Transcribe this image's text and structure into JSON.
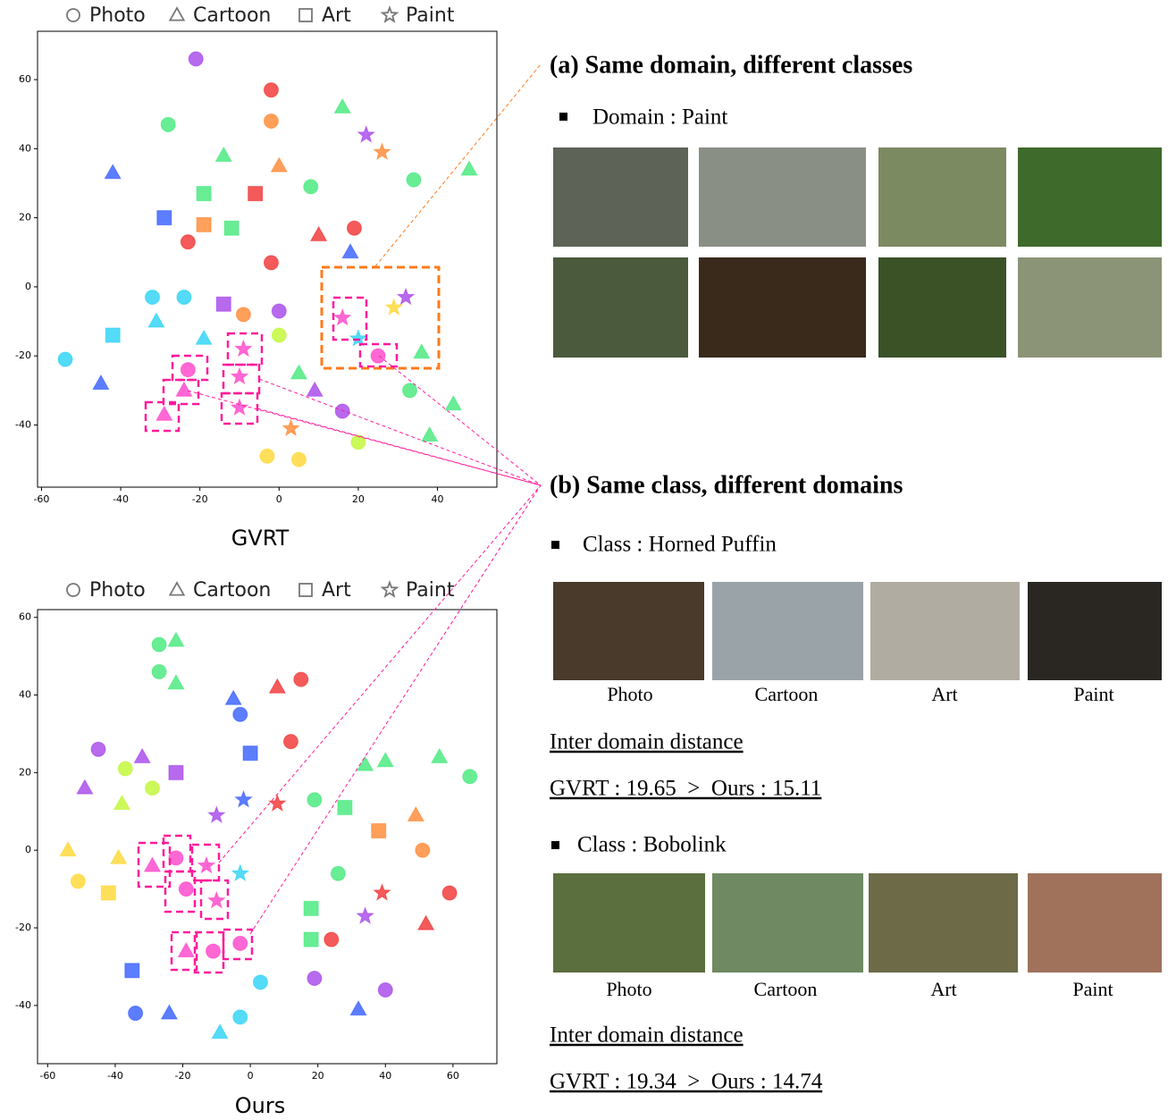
{
  "chart_data": [
    {
      "type": "scatter",
      "xlabel": "GVRT",
      "xlim": [
        -61,
        55
      ],
      "ylim": [
        -58,
        74
      ],
      "xticks": [
        -60,
        -40,
        -20,
        0,
        20,
        40
      ],
      "yticks": [
        -40,
        -20,
        0,
        20,
        40,
        60
      ],
      "legend": "top",
      "series": [
        {
          "name": "Photo",
          "marker": "circle",
          "x": [
            -21,
            -2,
            -2,
            -28,
            8,
            -23,
            19,
            -2,
            -24,
            -32,
            -9,
            0,
            0,
            -54,
            -23,
            16,
            -3,
            5,
            20,
            33,
            25,
            34
          ],
          "values": [
            66,
            57,
            48,
            47,
            29,
            13,
            17,
            7,
            -3,
            -3,
            -8,
            -7,
            -14,
            -21,
            -24,
            -36,
            -49,
            -50,
            -45,
            -30,
            -20,
            31
          ],
          "colors": [
            "#9b30e8",
            "#f01a1a",
            "#ff7a1a",
            "#2ee66b",
            "#2ee66b",
            "#f01a1a",
            "#f01a1a",
            "#f01a1a",
            "#12cdf5",
            "#12cdf5",
            "#ff7a1a",
            "#9b30e8",
            "#b8f51a",
            "#12cdf5",
            "#ff2ec4",
            "#9b30e8",
            "#ffd21a",
            "#ffd21a",
            "#b8f51a",
            "#2ee66b",
            "#ff2ec4",
            "#2ee66b"
          ]
        },
        {
          "name": "Cartoon",
          "marker": "triangle",
          "x": [
            -14,
            0,
            16,
            -42,
            48,
            10,
            18,
            -31,
            -45,
            -19,
            -29,
            -24,
            5,
            9,
            44,
            38,
            36
          ],
          "values": [
            38,
            35,
            52,
            33,
            34,
            15,
            10,
            -10,
            -28,
            -15,
            -37,
            -30,
            -25,
            -30,
            -34,
            -43,
            -19
          ],
          "colors": [
            "#2ee66b",
            "#ff7a1a",
            "#2ee66b",
            "#1f4bff",
            "#2ee66b",
            "#f01a1a",
            "#1f4bff",
            "#12cdf5",
            "#1f4bff",
            "#12cdf5",
            "#ff2ec4",
            "#ff2ec4",
            "#2ee66b",
            "#9b30e8",
            "#2ee66b",
            "#2ee66b",
            "#2ee66b"
          ]
        },
        {
          "name": "Art",
          "marker": "square",
          "x": [
            -19,
            -6,
            -29,
            -19,
            -12,
            -42,
            -14
          ],
          "values": [
            27,
            27,
            20,
            18,
            17,
            -14,
            -5
          ],
          "colors": [
            "#2ee66b",
            "#f01a1a",
            "#1f4bff",
            "#ff7a1a",
            "#2ee66b",
            "#12cdf5",
            "#9b30e8"
          ]
        },
        {
          "name": "Paint",
          "marker": "star",
          "x": [
            -9,
            -10,
            -10,
            3,
            16,
            32,
            29,
            20,
            22,
            26
          ],
          "values": [
            -18,
            -26,
            -35,
            -41,
            -9,
            -3,
            -6,
            -15,
            44,
            39
          ],
          "colors": [
            "#ff2ec4",
            "#ff2ec4",
            "#ff2ec4",
            "#ff7a1a",
            "#ff2ec4",
            "#9b30e8",
            "#ffd21a",
            "#12cdf5",
            "#9b30e8",
            "#ff7a1a"
          ]
        }
      ]
    },
    {
      "type": "scatter",
      "xlabel": "Ours",
      "xlim": [
        -63,
        73
      ],
      "ylim": [
        -55,
        62
      ],
      "xticks": [
        -60,
        -40,
        -20,
        0,
        20,
        40,
        60
      ],
      "yticks": [
        -40,
        -20,
        0,
        20,
        40,
        60
      ],
      "legend": "top",
      "series": [
        {
          "name": "Photo",
          "marker": "circle",
          "x": [
            -27,
            -27,
            -3,
            15,
            12,
            -45,
            -37,
            -29,
            65,
            19,
            51,
            -51,
            -22,
            -19,
            -11,
            -3,
            3,
            -3,
            -34,
            24,
            26,
            59,
            19,
            40
          ],
          "values": [
            53,
            46,
            35,
            44,
            28,
            26,
            21,
            16,
            19,
            13,
            0,
            -8,
            -2,
            -10,
            -26,
            -24,
            -34,
            -43,
            -42,
            -23,
            -6,
            -11,
            -33,
            -36
          ],
          "colors": [
            "#2ee66b",
            "#2ee66b",
            "#1f4bff",
            "#f01a1a",
            "#f01a1a",
            "#9b30e8",
            "#b8f51a",
            "#b8f51a",
            "#2ee66b",
            "#2ee66b",
            "#ff7a1a",
            "#ffd21a",
            "#ff2ec4",
            "#ff2ec4",
            "#ff2ec4",
            "#ff2ec4",
            "#12cdf5",
            "#12cdf5",
            "#1f4bff",
            "#f01a1a",
            "#2ee66b",
            "#f01a1a",
            "#9b30e8",
            "#9b30e8"
          ]
        },
        {
          "name": "Cartoon",
          "marker": "triangle",
          "x": [
            -22,
            -22,
            -5,
            8,
            -49,
            -38,
            -32,
            34,
            40,
            56,
            49,
            -54,
            -39,
            -29,
            -19,
            -9,
            -24,
            52,
            32
          ],
          "values": [
            54,
            43,
            39,
            42,
            16,
            12,
            24,
            22,
            23,
            24,
            9,
            0,
            -2,
            -4,
            -26,
            -47,
            -42,
            -19,
            -41
          ],
          "colors": [
            "#2ee66b",
            "#2ee66b",
            "#1f4bff",
            "#f01a1a",
            "#9b30e8",
            "#b8f51a",
            "#9b30e8",
            "#2ee66b",
            "#2ee66b",
            "#2ee66b",
            "#ff7a1a",
            "#ffd21a",
            "#ffd21a",
            "#ff2ec4",
            "#ff2ec4",
            "#12cdf5",
            "#1f4bff",
            "#f01a1a",
            "#1f4bff"
          ]
        },
        {
          "name": "Art",
          "marker": "square",
          "x": [
            -22,
            0,
            28,
            38,
            -42,
            -35,
            18,
            18
          ],
          "values": [
            20,
            25,
            11,
            5,
            -11,
            -31,
            -15,
            -23
          ],
          "colors": [
            "#9b30e8",
            "#1f4bff",
            "#2ee66b",
            "#ff7a1a",
            "#ffd21a",
            "#1f4bff",
            "#2ee66b",
            "#2ee66b"
          ]
        },
        {
          "name": "Paint",
          "marker": "star",
          "x": [
            -2,
            -10,
            8,
            -13,
            -10,
            -3,
            34,
            39
          ],
          "values": [
            13,
            9,
            12,
            -4,
            -13,
            -6,
            -17,
            -11
          ],
          "colors": [
            "#1f4bff",
            "#9b30e8",
            "#f01a1a",
            "#ff2ec4",
            "#ff2ec4",
            "#12cdf5",
            "#9b30e8",
            "#f01a1a"
          ]
        }
      ]
    }
  ],
  "panel_a": {
    "title": "(a) Same domain, different classes",
    "domain": "Domain : Paint"
  },
  "panel_b": {
    "title": "(b) Same class, different domains",
    "groups": [
      {
        "class": "Class : Horned Puffin",
        "captions": [
          "Photo",
          "Cartoon",
          "Art",
          "Paint"
        ],
        "metric": "Inter domain distance",
        "result": "GVRT : 19.65  >  Ours : 15.11"
      },
      {
        "class": "Class : Bobolink",
        "captions": [
          "Photo",
          "Cartoon",
          "Art",
          "Paint"
        ],
        "metric": "Inter domain distance",
        "result": "GVRT : 19.34  >  Ours : 14.74"
      }
    ]
  }
}
